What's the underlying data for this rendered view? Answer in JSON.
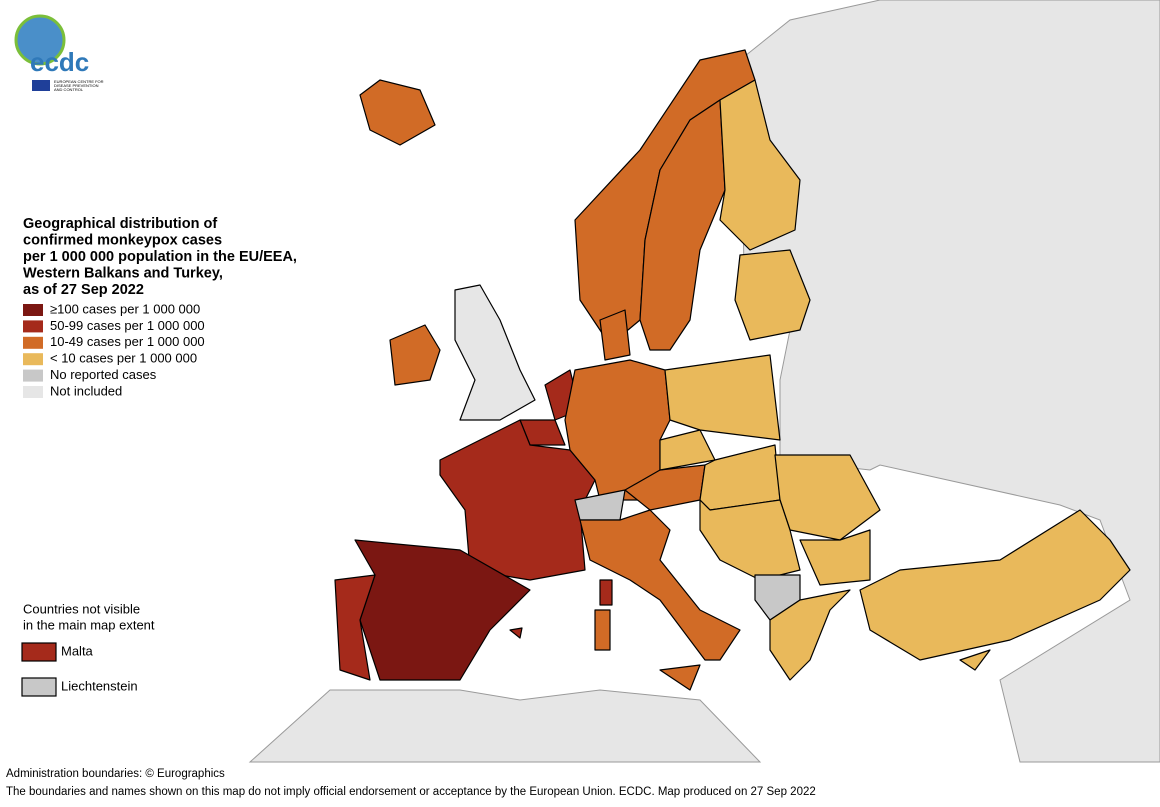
{
  "logo": {
    "name": "ecdc",
    "subtitle": [
      "EUROPEAN CENTRE FOR",
      "DISEASE PREVENTION",
      "AND CONTROL"
    ]
  },
  "title": [
    "Geographical distribution of",
    "confirmed monkeypox cases",
    "per 1 000 000 population in the EU/EEA,",
    "Western Balkans and Turkey,",
    "as of 27 Sep 2022"
  ],
  "legend": [
    {
      "label": "≥100 cases per 1 000 000",
      "color": "#7b1712"
    },
    {
      "label": "50-99 cases per 1 000 000",
      "color": "#a52a1b"
    },
    {
      "label": "10-49 cases per 1 000 000",
      "color": "#d16b26"
    },
    {
      "label": "< 10 cases per 1 000 000",
      "color": "#e9b95b"
    },
    {
      "label": "No reported cases",
      "color": "#c8c8c8"
    },
    {
      "label": "Not included",
      "color": "#e6e6e6"
    }
  ],
  "inset": {
    "title": [
      "Countries not visible",
      "in the main map extent"
    ],
    "items": [
      {
        "label": "Malta",
        "color": "#a52a1b"
      },
      {
        "label": "Liechtenstein",
        "color": "#c8c8c8"
      }
    ]
  },
  "footer": [
    "Administration boundaries: © Eurographics",
    "The boundaries and names shown on this map do not imply official endorsement or acceptance by the European Union. ECDC. Map produced on 27 Sep 2022"
  ]
}
